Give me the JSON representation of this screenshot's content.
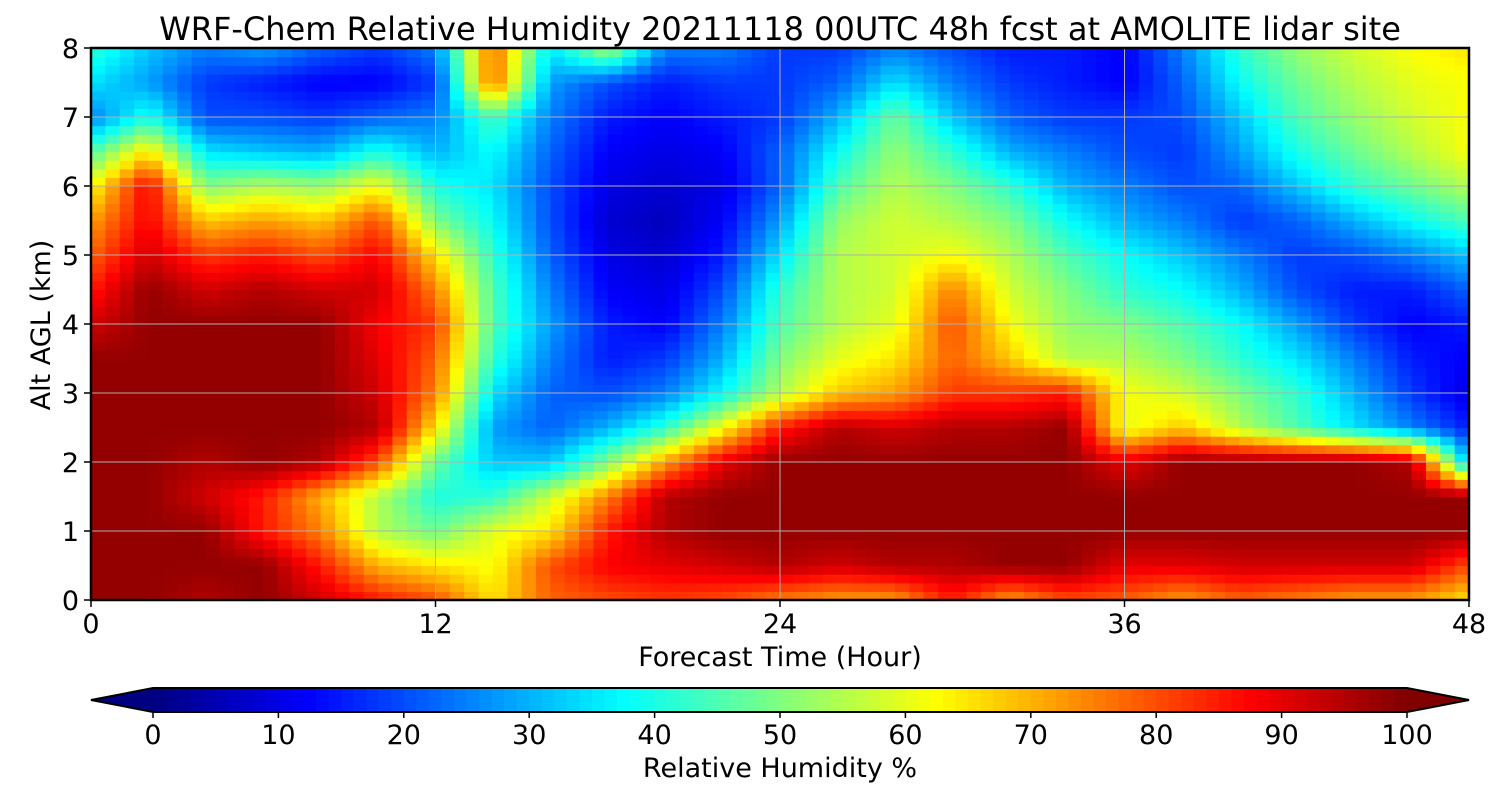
{
  "chart_data": {
    "type": "heatmap",
    "title": "WRF-Chem Relative Humidity 20211118 00UTC 48h fcst at AMOLITE lidar site",
    "xlabel": "Forecast Time (Hour)",
    "ylabel": "Alt AGL (km)",
    "xlim": [
      0,
      48
    ],
    "ylim": [
      0,
      8
    ],
    "x_ticks": [
      0,
      12,
      24,
      36,
      48
    ],
    "x_tick_labels": [
      "0",
      "12",
      "24",
      "36",
      "48"
    ],
    "y_ticks": [
      0,
      1,
      2,
      3,
      4,
      5,
      6,
      7,
      8
    ],
    "y_tick_labels": [
      "0",
      "1",
      "2",
      "3",
      "4",
      "5",
      "6",
      "7",
      "8"
    ],
    "grid": true,
    "colormap": "jet",
    "extend": "both",
    "colorbar": {
      "label": "Relative Humidity %",
      "orientation": "horizontal",
      "placement": "bottom",
      "range": [
        0,
        100
      ],
      "ticks": [
        0,
        10,
        20,
        30,
        40,
        50,
        60,
        70,
        80,
        90,
        100
      ],
      "tick_labels": [
        "0",
        "10",
        "20",
        "30",
        "40",
        "50",
        "60",
        "70",
        "80",
        "90",
        "100"
      ]
    },
    "grid_x_hours": [
      0,
      2,
      4,
      6,
      8,
      10,
      12,
      14,
      16,
      18,
      20,
      22,
      24,
      26,
      28,
      30,
      32,
      34,
      36,
      38,
      40,
      42,
      44,
      46,
      48
    ],
    "grid_y_km": [
      0,
      0.5,
      1,
      1.5,
      2,
      2.5,
      3,
      3.5,
      4,
      4.5,
      5,
      5.5,
      6,
      6.5,
      7,
      7.5,
      8
    ],
    "rh_percent": [
      [
        98,
        98,
        95,
        98,
        92,
        85,
        80,
        65,
        78,
        80,
        82,
        80,
        75,
        72,
        72,
        85,
        72,
        80,
        78,
        72,
        78,
        75,
        72,
        72,
        65
      ],
      [
        98,
        98,
        98,
        98,
        85,
        70,
        65,
        62,
        80,
        88,
        90,
        92,
        95,
        92,
        95,
        95,
        98,
        98,
        90,
        90,
        92,
        92,
        92,
        92,
        80
      ],
      [
        98,
        98,
        98,
        85,
        75,
        55,
        48,
        60,
        65,
        85,
        95,
        98,
        98,
        98,
        98,
        98,
        98,
        98,
        98,
        98,
        98,
        98,
        98,
        98,
        98
      ],
      [
        98,
        98,
        92,
        85,
        70,
        55,
        40,
        42,
        58,
        75,
        95,
        98,
        98,
        98,
        98,
        98,
        98,
        98,
        98,
        98,
        98,
        98,
        98,
        98,
        98
      ],
      [
        98,
        98,
        95,
        98,
        95,
        80,
        48,
        32,
        32,
        50,
        72,
        90,
        98,
        98,
        98,
        98,
        98,
        98,
        90,
        98,
        98,
        98,
        98,
        95,
        30
      ],
      [
        98,
        98,
        98,
        98,
        98,
        95,
        65,
        28,
        22,
        30,
        42,
        62,
        85,
        95,
        92,
        95,
        95,
        98,
        60,
        68,
        55,
        45,
        35,
        25,
        15
      ],
      [
        98,
        98,
        98,
        98,
        98,
        92,
        75,
        35,
        22,
        20,
        25,
        38,
        55,
        68,
        72,
        82,
        82,
        85,
        62,
        58,
        50,
        42,
        30,
        18,
        10
      ],
      [
        98,
        98,
        98,
        98,
        98,
        90,
        78,
        42,
        25,
        15,
        18,
        30,
        50,
        60,
        65,
        78,
        68,
        55,
        55,
        50,
        42,
        35,
        25,
        15,
        12
      ],
      [
        92,
        98,
        98,
        98,
        98,
        88,
        82,
        45,
        28,
        15,
        12,
        25,
        45,
        55,
        60,
        80,
        62,
        52,
        50,
        45,
        38,
        28,
        18,
        12,
        15
      ],
      [
        85,
        98,
        92,
        95,
        92,
        92,
        75,
        45,
        25,
        12,
        10,
        20,
        42,
        55,
        58,
        75,
        58,
        50,
        42,
        38,
        30,
        20,
        15,
        15,
        22
      ],
      [
        78,
        92,
        82,
        85,
        80,
        88,
        65,
        42,
        22,
        10,
        8,
        15,
        35,
        55,
        58,
        62,
        55,
        45,
        38,
        32,
        25,
        18,
        20,
        25,
        32
      ],
      [
        72,
        88,
        68,
        72,
        68,
        80,
        50,
        38,
        20,
        8,
        6,
        12,
        28,
        52,
        58,
        55,
        50,
        38,
        30,
        25,
        18,
        22,
        30,
        38,
        45
      ],
      [
        62,
        88,
        50,
        55,
        52,
        62,
        40,
        35,
        20,
        10,
        8,
        10,
        22,
        45,
        55,
        50,
        42,
        30,
        25,
        20,
        22,
        32,
        42,
        48,
        55
      ],
      [
        45,
        65,
        35,
        32,
        30,
        40,
        30,
        38,
        22,
        12,
        10,
        12,
        22,
        38,
        52,
        42,
        30,
        25,
        20,
        18,
        28,
        40,
        48,
        55,
        62
      ],
      [
        25,
        40,
        20,
        20,
        18,
        22,
        25,
        45,
        25,
        15,
        12,
        15,
        18,
        30,
        48,
        32,
        22,
        18,
        18,
        20,
        32,
        45,
        52,
        58,
        62
      ],
      [
        35,
        28,
        18,
        15,
        12,
        12,
        18,
        78,
        28,
        20,
        15,
        18,
        18,
        22,
        35,
        25,
        18,
        15,
        12,
        22,
        38,
        48,
        55,
        60,
        62
      ],
      [
        42,
        32,
        25,
        28,
        22,
        18,
        25,
        78,
        35,
        55,
        25,
        25,
        18,
        18,
        25,
        20,
        15,
        15,
        12,
        25,
        42,
        52,
        58,
        62,
        65
      ]
    ]
  }
}
